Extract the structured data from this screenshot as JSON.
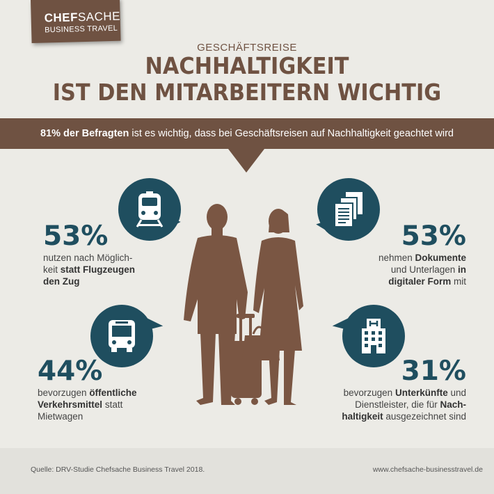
{
  "logo": {
    "text_bold": "CHEF",
    "text_regular": "SACHE",
    "subtitle": "BUSINESS TRAVEL"
  },
  "header": {
    "kicker": "GESCHÄFTSREISE",
    "headline_line1": "NACHHALTIGKEIT",
    "headline_line2": "IST DEN MITARBEITERN WICHTIG"
  },
  "banner": {
    "bold": "81% der Befragten",
    "rest": " ist es wichtig, dass bei Geschäftsreisen auf Nachhaltigkeit geachtet wird"
  },
  "stats": {
    "train": {
      "icon": "train-icon",
      "percent": "53%",
      "line1": "nutzen nach Möglich-",
      "line2_plain": "keit ",
      "line2_bold": "statt Flugzeugen",
      "line3_bold": "den Zug"
    },
    "documents": {
      "icon": "documents-icon",
      "percent": "53%",
      "line1_plain": "nehmen ",
      "line1_bold": "Dokumente",
      "line2_plain": "und Unterlagen ",
      "line2_bold": "in",
      "line3_bold": "digitaler Form",
      "line3_plain": " mit"
    },
    "bus": {
      "icon": "bus-icon",
      "percent": "44%",
      "line1_plain": "bevorzugen ",
      "line1_bold": "öffentliche",
      "line2_bold": "Verkehrsmittel",
      "line2_plain": " statt",
      "line3": "Mietwagen"
    },
    "hotel": {
      "icon": "hotel-icon",
      "percent": "31%",
      "line1_plain": "bevorzugen ",
      "line1_bold": "Unterkünfte",
      "line1_plain2": " und",
      "line2_plain": "Dienstleister, die für ",
      "line2_bold": "Nach-",
      "line3_bold": "haltigkeit",
      "line3_plain": " ausgezeichnet sind"
    }
  },
  "footer": {
    "source": "Quelle: DRV-Studie Chefsache Business Travel 2018.",
    "url": "www.chefsache-businesstravel.de"
  },
  "colors": {
    "brown": "#6f5242",
    "teal": "#1f4e5f",
    "background": "#ecebe6",
    "figure": "#7a5643"
  }
}
